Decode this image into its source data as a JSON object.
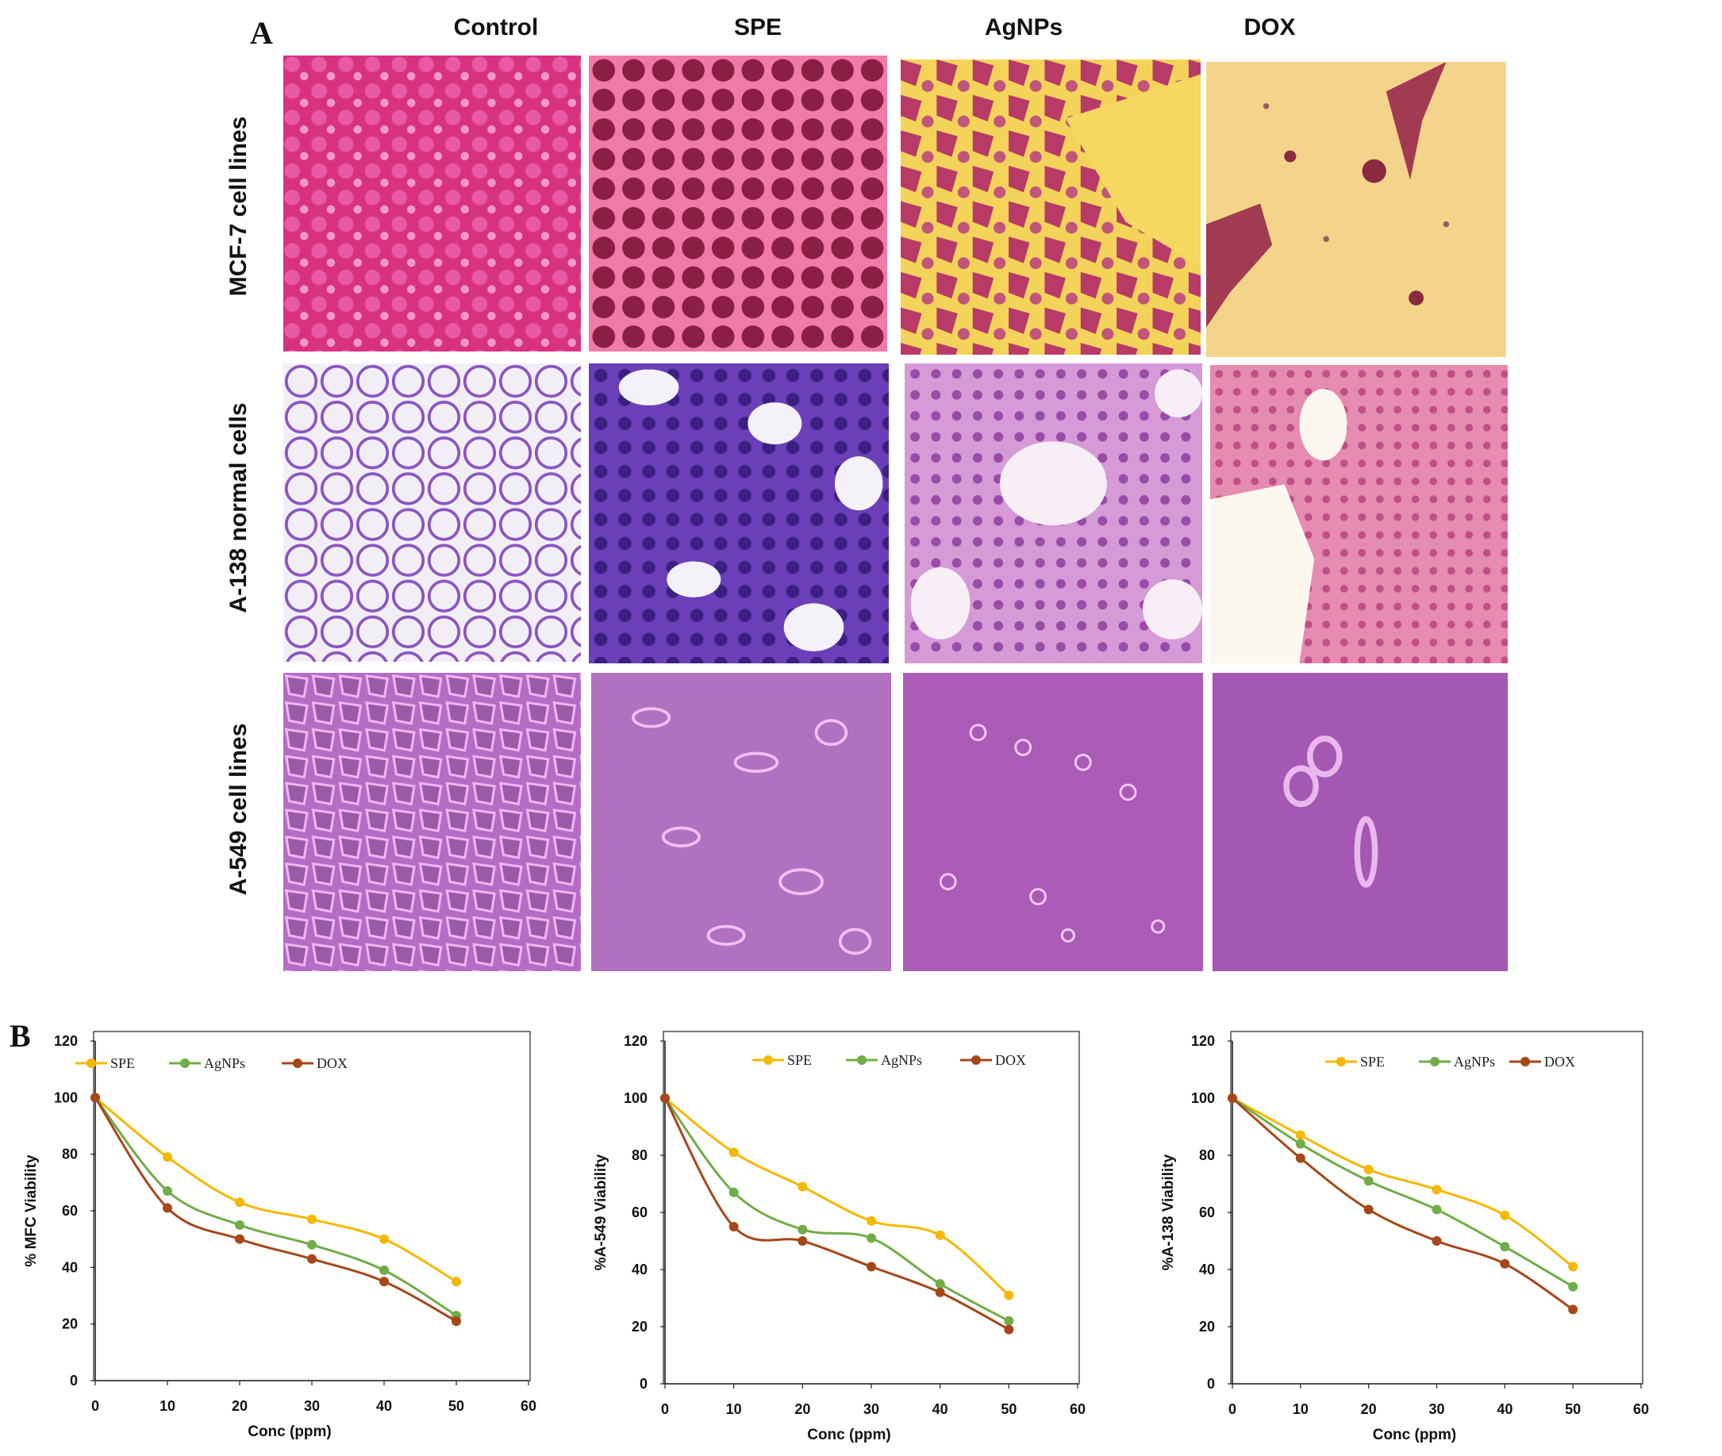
{
  "panel_a": {
    "letter": "A",
    "columns": [
      "Control",
      "SPE",
      "AgNPs",
      "DOX"
    ],
    "rows": [
      "MCF-7 cell lines",
      "A-138 normal cells",
      "A-549 cell lines"
    ]
  },
  "panel_b": {
    "letter": "B"
  },
  "colors": {
    "SPE": "#f5b800",
    "AgNPs": "#70ad47",
    "DOX": "#a5471a",
    "mcf7_bg": "#d83a8a",
    "a138_bg": "#f3eef6",
    "a549_bg": "#b968c8"
  },
  "chart_data": [
    {
      "type": "line",
      "ylabel": "% MFC Viability",
      "xlabel": "Conc (ppm)",
      "xlim": [
        0,
        60
      ],
      "ylim": [
        0,
        120
      ],
      "xticks": [
        0,
        10,
        20,
        30,
        40,
        50,
        60
      ],
      "yticks": [
        0,
        20,
        40,
        60,
        80,
        100,
        120
      ],
      "x": [
        0,
        10,
        20,
        30,
        40,
        50
      ],
      "legend_position": "top",
      "series": [
        {
          "name": "SPE",
          "values": [
            100,
            79,
            63,
            57,
            50,
            35
          ]
        },
        {
          "name": "AgNPs",
          "values": [
            100,
            67,
            55,
            48,
            39,
            23
          ]
        },
        {
          "name": "DOX",
          "values": [
            100,
            61,
            50,
            43,
            35,
            21
          ]
        }
      ]
    },
    {
      "type": "line",
      "ylabel": "%A-549 Viability",
      "xlabel": "Conc (ppm)",
      "xlim": [
        0,
        60
      ],
      "ylim": [
        0,
        120
      ],
      "xticks": [
        0,
        10,
        20,
        30,
        40,
        50,
        60
      ],
      "yticks": [
        0,
        20,
        40,
        60,
        80,
        100,
        120
      ],
      "x": [
        0,
        10,
        20,
        30,
        40,
        50
      ],
      "legend_position": "top",
      "series": [
        {
          "name": "SPE",
          "values": [
            100,
            81,
            69,
            57,
            52,
            31
          ]
        },
        {
          "name": "AgNPs",
          "values": [
            100,
            67,
            54,
            51,
            35,
            22
          ]
        },
        {
          "name": "DOX",
          "values": [
            100,
            55,
            50,
            41,
            32,
            19
          ]
        }
      ]
    },
    {
      "type": "line",
      "ylabel": "%A-138 Viability",
      "xlabel": "Conc (ppm)",
      "xlim": [
        0,
        60
      ],
      "ylim": [
        0,
        120
      ],
      "xticks": [
        0,
        10,
        20,
        30,
        40,
        50,
        60
      ],
      "yticks": [
        0,
        20,
        40,
        60,
        80,
        100,
        120
      ],
      "x": [
        0,
        10,
        20,
        30,
        40,
        50
      ],
      "legend_position": "top",
      "series": [
        {
          "name": "SPE",
          "values": [
            100,
            87,
            75,
            68,
            59,
            41
          ]
        },
        {
          "name": "AgNPs",
          "values": [
            100,
            84,
            71,
            61,
            48,
            34
          ]
        },
        {
          "name": "DOX",
          "values": [
            100,
            79,
            61,
            50,
            42,
            26
          ]
        }
      ]
    }
  ]
}
